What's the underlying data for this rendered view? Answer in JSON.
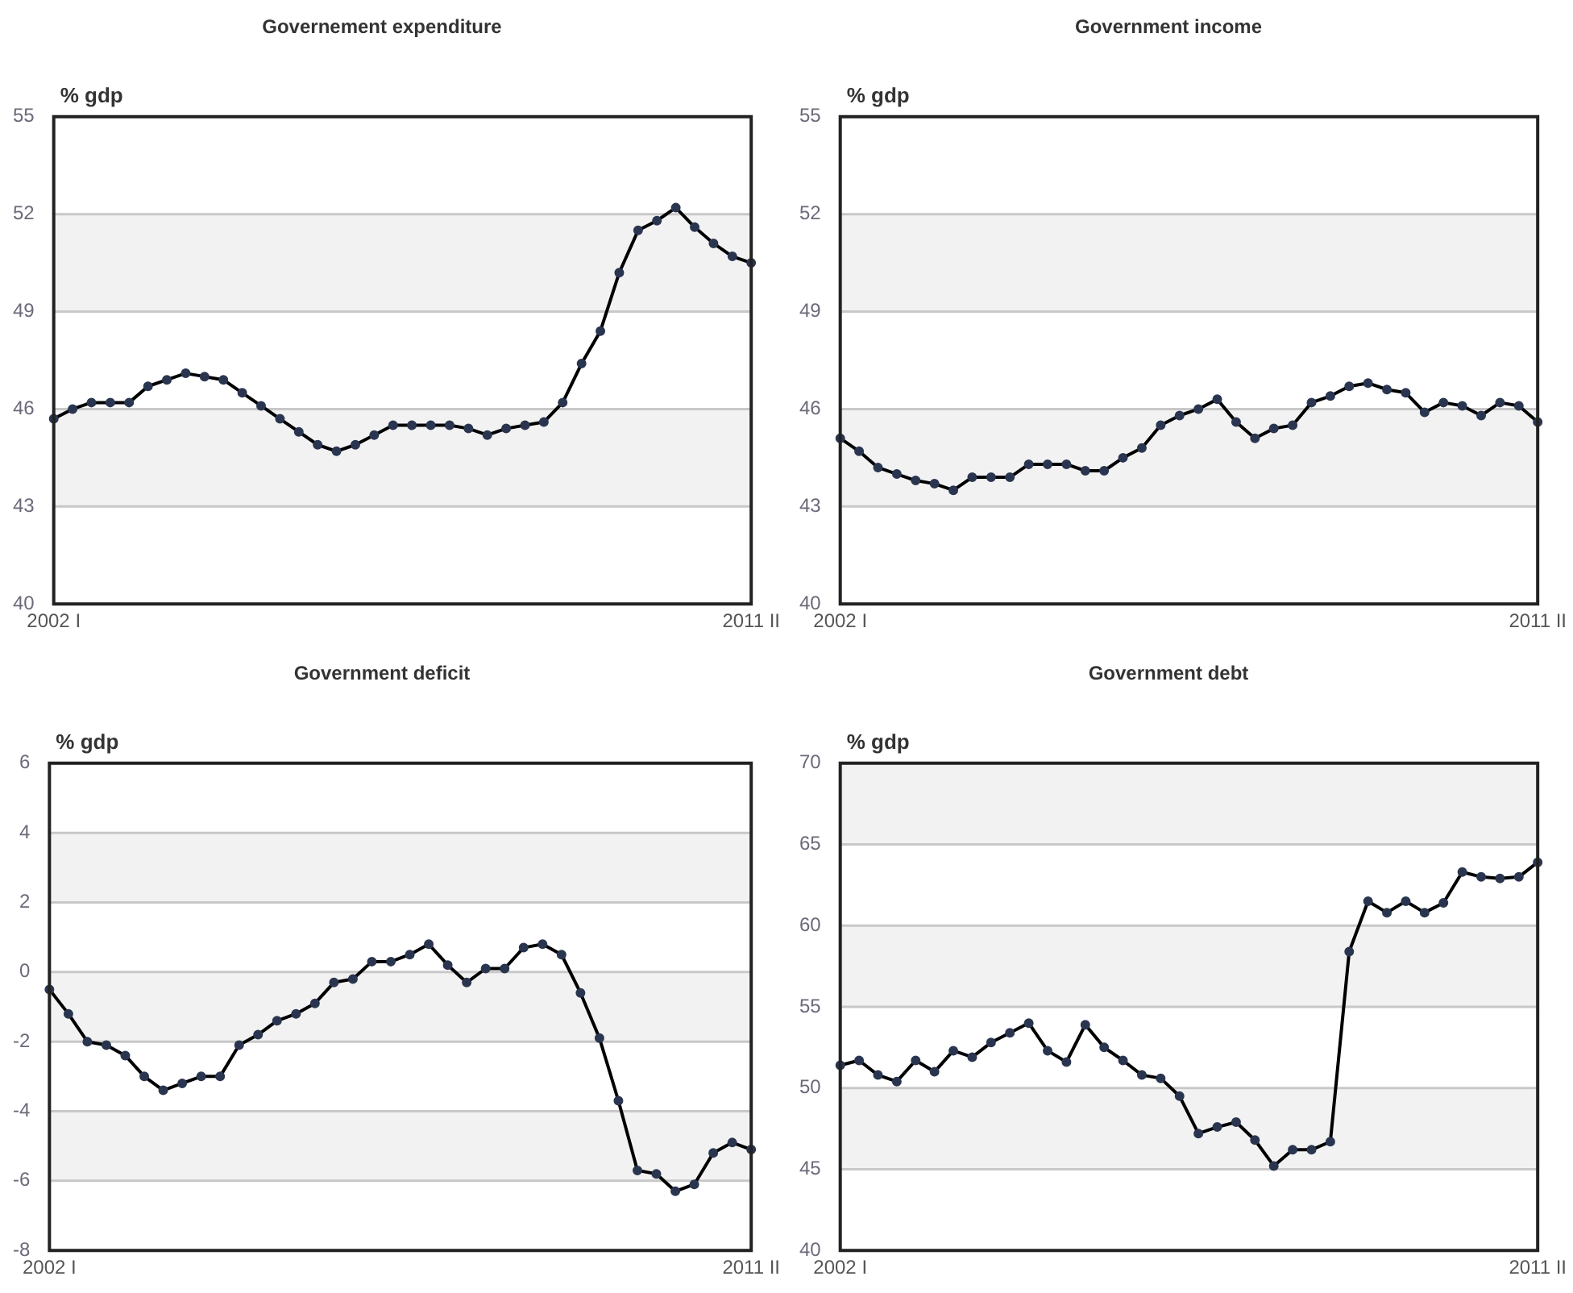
{
  "chart_data": [
    {
      "type": "line",
      "title": "Governement expenditure",
      "ylabel": "% gdp",
      "categories": [
        "2002 I",
        null,
        null,
        null,
        null,
        null,
        null,
        null,
        null,
        null,
        null,
        null,
        null,
        null,
        null,
        null,
        null,
        null,
        null,
        null,
        null,
        null,
        null,
        null,
        null,
        null,
        null,
        null,
        null,
        null,
        null,
        null,
        null,
        null,
        null,
        null,
        null,
        "2011 II"
      ],
      "series": [
        {
          "color": "#000000",
          "values": [
            45.7,
            46.0,
            46.2,
            46.2,
            46.2,
            46.7,
            46.9,
            47.1,
            47.0,
            46.9,
            46.5,
            46.1,
            45.7,
            45.3,
            44.9,
            44.7,
            44.9,
            45.2,
            45.5,
            45.5,
            45.5,
            45.5,
            45.4,
            45.2,
            45.4,
            45.5,
            45.6,
            46.2,
            47.4,
            48.4,
            50.2,
            51.5,
            51.8,
            52.2,
            51.6,
            51.1,
            50.7,
            50.5
          ]
        }
      ],
      "ylim": [
        40,
        55
      ],
      "yticks": [
        40,
        43,
        46,
        49,
        52,
        55
      ],
      "grid": "y",
      "legend": false,
      "marker": "circle",
      "line_style": "solid"
    },
    {
      "type": "line",
      "title": "Government income",
      "ylabel": "% gdp",
      "categories": [
        "2002 I",
        null,
        null,
        null,
        null,
        null,
        null,
        null,
        null,
        null,
        null,
        null,
        null,
        null,
        null,
        null,
        null,
        null,
        null,
        null,
        null,
        null,
        null,
        null,
        null,
        null,
        null,
        null,
        null,
        null,
        null,
        null,
        null,
        null,
        null,
        null,
        null,
        "2011 II"
      ],
      "series": [
        {
          "color": "#000000",
          "values": [
            45.1,
            44.7,
            44.2,
            44.0,
            43.8,
            43.7,
            43.5,
            43.9,
            43.9,
            43.9,
            44.3,
            44.3,
            44.3,
            44.1,
            44.1,
            44.5,
            44.8,
            45.5,
            45.8,
            46.0,
            46.3,
            45.6,
            45.1,
            45.4,
            45.5,
            46.2,
            46.4,
            46.7,
            46.8,
            46.6,
            46.5,
            45.9,
            46.2,
            46.1,
            45.8,
            46.2,
            46.1,
            45.6
          ]
        }
      ],
      "ylim": [
        40,
        55
      ],
      "yticks": [
        40,
        43,
        46,
        49,
        52,
        55
      ],
      "grid": "y",
      "legend": false,
      "marker": "circle",
      "line_style": "solid"
    },
    {
      "type": "line",
      "title": "Government deficit",
      "ylabel": "% gdp",
      "categories": [
        "2002 I",
        null,
        null,
        null,
        null,
        null,
        null,
        null,
        null,
        null,
        null,
        null,
        null,
        null,
        null,
        null,
        null,
        null,
        null,
        null,
        null,
        null,
        null,
        null,
        null,
        null,
        null,
        null,
        null,
        null,
        null,
        null,
        null,
        null,
        null,
        null,
        null,
        "2011 II"
      ],
      "series": [
        {
          "color": "#000000",
          "values": [
            -0.5,
            -1.2,
            -2.0,
            -2.1,
            -2.4,
            -3.0,
            -3.4,
            -3.2,
            -3.0,
            -3.0,
            -2.1,
            -1.8,
            -1.4,
            -1.2,
            -0.9,
            -0.3,
            -0.2,
            0.3,
            0.3,
            0.5,
            0.8,
            0.2,
            -0.3,
            0.1,
            0.1,
            0.7,
            0.8,
            0.5,
            -0.6,
            -1.9,
            -3.7,
            -5.7,
            -5.8,
            -6.3,
            -6.1,
            -5.2,
            -4.9,
            -5.1
          ]
        }
      ],
      "ylim": [
        -8,
        6
      ],
      "yticks": [
        -8,
        -6,
        -4,
        -2,
        0,
        2,
        4,
        6
      ],
      "grid": "y",
      "legend": false,
      "marker": "circle",
      "line_style": "solid"
    },
    {
      "type": "line",
      "title": "Government debt",
      "ylabel": "% gdp",
      "categories": [
        "2002 I",
        null,
        null,
        null,
        null,
        null,
        null,
        null,
        null,
        null,
        null,
        null,
        null,
        null,
        null,
        null,
        null,
        null,
        null,
        null,
        null,
        null,
        null,
        null,
        null,
        null,
        null,
        null,
        null,
        null,
        null,
        null,
        null,
        null,
        null,
        null,
        null,
        "2011 II"
      ],
      "series": [
        {
          "color": "#000000",
          "values": [
            51.4,
            51.7,
            50.8,
            50.4,
            51.7,
            51.0,
            52.3,
            51.9,
            52.8,
            53.4,
            54.0,
            52.3,
            51.6,
            53.9,
            52.5,
            51.7,
            50.8,
            50.6,
            49.5,
            47.2,
            47.6,
            47.9,
            46.8,
            45.2,
            46.2,
            46.2,
            46.7,
            58.4,
            61.5,
            60.8,
            61.5,
            60.8,
            61.4,
            63.3,
            63.0,
            62.9,
            63.0,
            63.9
          ]
        }
      ],
      "ylim": [
        40,
        70
      ],
      "yticks": [
        40,
        45,
        50,
        55,
        60,
        65,
        70
      ],
      "grid": "y",
      "legend": false,
      "marker": "circle",
      "line_style": "solid"
    }
  ]
}
